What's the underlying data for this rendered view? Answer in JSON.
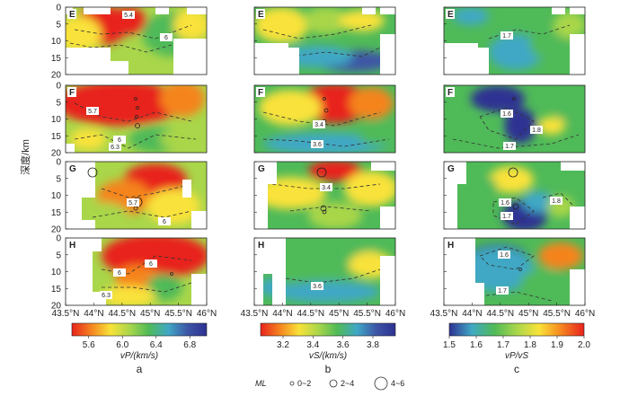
{
  "chart_data": {
    "type": "heatmap",
    "description_axes": {
      "ylabel": "深度/km",
      "y_ticks": [
        0,
        5,
        10,
        15,
        20
      ],
      "x_ticks": [
        "43.5°N",
        "44°N",
        "44.5°N",
        "45°N",
        "45.5°N",
        "46°N"
      ]
    },
    "rows": [
      "E",
      "F",
      "G",
      "H"
    ],
    "columns": [
      {
        "id": "a",
        "quantity": "vP/(km/s)",
        "colorbar_ticks": [
          "5.6",
          "6.0",
          "6.4",
          "6.8"
        ],
        "colorbar_range": [
          5.4,
          7.0
        ],
        "colors": [
          "#e8221c",
          "#f5841f",
          "#f9e23a",
          "#a9d64a",
          "#4fba58",
          "#3fa8c5",
          "#3d56a6",
          "#2e3192"
        ],
        "contour_labels": {
          "E": [
            "5.4",
            "6"
          ],
          "F": [
            "5.7",
            "6",
            "6.3"
          ],
          "G": [
            "5.7",
            "6"
          ],
          "H": [
            "6",
            "6",
            "6.3"
          ]
        }
      },
      {
        "id": "b",
        "quantity": "vS/(km/s)",
        "colorbar_ticks": [
          "3.2",
          "3.4",
          "3.6",
          "3.8"
        ],
        "colorbar_range": [
          3.05,
          3.95
        ],
        "colors": [
          "#e8221c",
          "#f5841f",
          "#f9e23a",
          "#a9d64a",
          "#4fba58",
          "#3fa8c5",
          "#3d56a6",
          "#2e3192"
        ],
        "contour_labels": {
          "E": [],
          "F": [
            "3.4",
            "3.6"
          ],
          "G": [
            "3.4"
          ],
          "H": [
            "3.6"
          ]
        }
      },
      {
        "id": "c",
        "quantity": "vP/vS",
        "colorbar_ticks": [
          "1.5",
          "1.6",
          "1.7",
          "1.8",
          "1.9",
          "2.0"
        ],
        "colorbar_range": [
          1.5,
          2.0
        ],
        "colors": [
          "#2e3192",
          "#3fa8c5",
          "#4fba58",
          "#a9d64a",
          "#f9e23a",
          "#f5841f",
          "#e8221c"
        ],
        "contour_labels": {
          "E": [
            "1.7"
          ],
          "F": [
            "1.6",
            "1.8",
            "1.7"
          ],
          "G": [
            "1.6",
            "1.8",
            "1.7"
          ],
          "H": [
            "1.6",
            "1.7"
          ]
        }
      }
    ],
    "legend": {
      "title": "ML",
      "items": [
        "0~2",
        "2~4",
        "4~6"
      ]
    }
  }
}
